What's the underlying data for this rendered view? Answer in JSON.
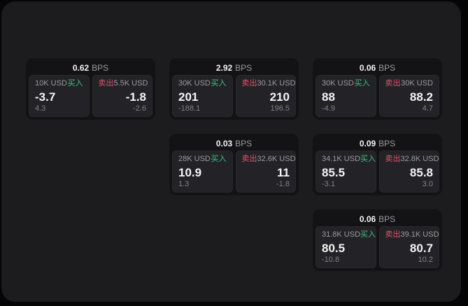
{
  "colors": {
    "page-bg": "#050505",
    "panel-bg": "#1c1c1e",
    "card-bg": "#131315",
    "tile-bg": "#232327",
    "text-primary": "#f4f4f5",
    "text-muted": "#9c9c9e",
    "text-dim": "#828285",
    "buy-green": "#43c17c",
    "sell-red": "#dd5468"
  },
  "labels": {
    "buy": "买入",
    "sell": "卖出",
    "bps_unit": "BPS"
  },
  "cards": [
    {
      "row": 1,
      "col": 1,
      "bps": "0.62",
      "buy": {
        "amount": "10K USD",
        "value": "-3.7",
        "sub": "4.3"
      },
      "sell": {
        "amount": "5.5K USD",
        "value": "-1.8",
        "sub": "-2.6"
      }
    },
    {
      "row": 1,
      "col": 2,
      "bps": "2.92",
      "buy": {
        "amount": "30K USD",
        "value": "201",
        "sub": "-188.1"
      },
      "sell": {
        "amount": "30.1K USD",
        "value": "210",
        "sub": "196.5"
      }
    },
    {
      "row": 1,
      "col": 3,
      "bps": "0.06",
      "buy": {
        "amount": "30K USD",
        "value": "88",
        "sub": "-4.9"
      },
      "sell": {
        "amount": "30K USD",
        "value": "88.2",
        "sub": "4.7"
      }
    },
    {
      "row": 2,
      "col": 2,
      "bps": "0.03",
      "buy": {
        "amount": "28K USD",
        "value": "10.9",
        "sub": "1.3"
      },
      "sell": {
        "amount": "32.6K USD",
        "value": "11",
        "sub": "-1.8"
      }
    },
    {
      "row": 2,
      "col": 3,
      "bps": "0.09",
      "buy": {
        "amount": "34.1K USD",
        "value": "85.5",
        "sub": "-3.1"
      },
      "sell": {
        "amount": "32.8K USD",
        "value": "85.8",
        "sub": "3.0"
      }
    },
    {
      "row": 3,
      "col": 3,
      "bps": "0.06",
      "buy": {
        "amount": "31.8K USD",
        "value": "80.5",
        "sub": "-10.8"
      },
      "sell": {
        "amount": "39.1K USD",
        "value": "80.7",
        "sub": "10.2"
      }
    }
  ]
}
